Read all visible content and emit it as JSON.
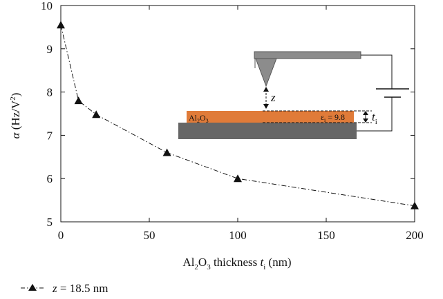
{
  "chart_data": {
    "type": "line",
    "title": "",
    "xlabel": {
      "prefix": "Al",
      "sub1": "2",
      "mid": "O",
      "sub2": "3",
      "text": " thickness ",
      "var": "t",
      "var_sub": "i",
      "unit": " (nm)"
    },
    "ylabel": {
      "symbol": "α",
      "unit_open": " (Hz/V",
      "sup": "2",
      "unit_close": ")"
    },
    "xlim": [
      0,
      200
    ],
    "ylim": [
      5,
      10
    ],
    "x_ticks": [
      0,
      50,
      100,
      150,
      200
    ],
    "y_ticks": [
      5,
      6,
      7,
      8,
      9,
      10
    ],
    "grid": false,
    "series": [
      {
        "name": "z = 18.5 nm",
        "marker": "triangle",
        "line_style": "dash-dot",
        "color": "#111111",
        "x": [
          0,
          10,
          20,
          60,
          100,
          200
        ],
        "y": [
          9.55,
          7.8,
          7.48,
          6.6,
          6.0,
          5.37
        ]
      }
    ],
    "legend": {
      "var": "z",
      "rest": " = 18.5 nm",
      "placement": "bottom-left, below plot"
    },
    "inset": {
      "layer_label": {
        "a": "Al",
        "b": "2",
        "c": "O",
        "d": "3"
      },
      "z_label": "z",
      "eps_label": {
        "sym": "ε",
        "sub": "i",
        "rest": " = 9.8"
      },
      "t_label": {
        "sym": "t",
        "sub": "i"
      },
      "colors": {
        "tip": "#8c8c8c",
        "layer": "#e07b39",
        "substrate": "#666666"
      }
    }
  }
}
